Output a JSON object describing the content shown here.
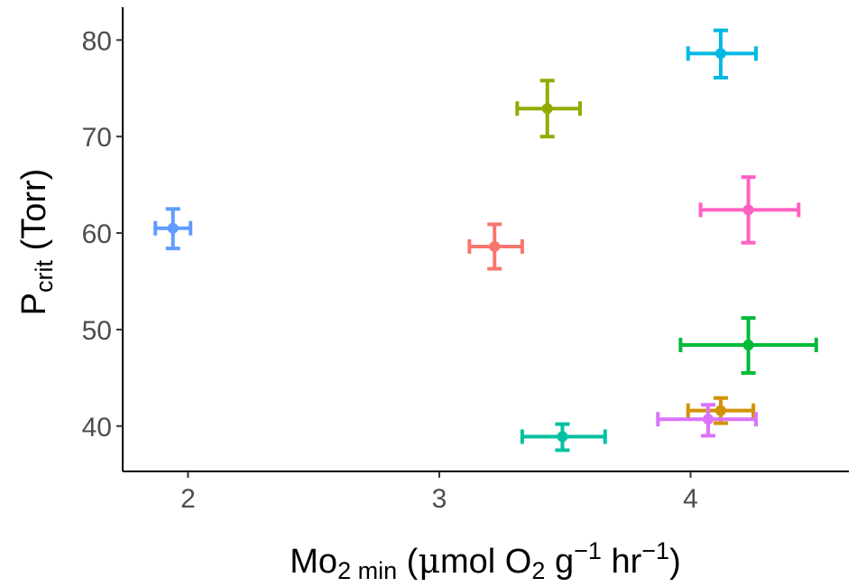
{
  "chart_data": {
    "type": "scatter",
    "title": "",
    "xlabel": {
      "base": "Mo",
      "sub": "2 min",
      "rest_open": " (",
      "mu": "μ",
      "mol": "mol O",
      "o_sub": "2",
      "g": " g",
      "g_sup": "−1",
      "hr": " hr",
      "hr_sup": "−1",
      "close": ")"
    },
    "ylabel": {
      "base": "P",
      "sub": "crit",
      "rest": " (Torr)"
    },
    "xlim": [
      1.74,
      4.63
    ],
    "ylim": [
      35.3,
      83.4
    ],
    "xticks": [
      {
        "value": 2,
        "label": "2"
      },
      {
        "value": 3,
        "label": "3"
      },
      {
        "value": 4,
        "label": "4"
      }
    ],
    "yticks": [
      {
        "value": 40,
        "label": "40"
      },
      {
        "value": 50,
        "label": "50"
      },
      {
        "value": 60,
        "label": "60"
      },
      {
        "value": 70,
        "label": "70"
      },
      {
        "value": 80,
        "label": "80"
      }
    ],
    "grid": false,
    "legend": "none",
    "points": [
      {
        "x": 1.94,
        "y": 60.5,
        "xerr": [
          1.87,
          2.01
        ],
        "yerr": [
          58.4,
          62.5
        ],
        "color": "#619CFF"
      },
      {
        "x": 3.22,
        "y": 58.6,
        "xerr": [
          3.12,
          3.33
        ],
        "yerr": [
          56.3,
          60.9
        ],
        "color": "#F8766D"
      },
      {
        "x": 3.43,
        "y": 72.9,
        "xerr": [
          3.31,
          3.56
        ],
        "yerr": [
          70.0,
          75.8
        ],
        "color": "#93AA00"
      },
      {
        "x": 3.49,
        "y": 38.9,
        "xerr": [
          3.33,
          3.66
        ],
        "yerr": [
          37.5,
          40.2
        ],
        "color": "#00C19F"
      },
      {
        "x": 4.12,
        "y": 78.6,
        "xerr": [
          3.99,
          4.26
        ],
        "yerr": [
          76.1,
          81.0
        ],
        "color": "#00B9E3"
      },
      {
        "x": 4.23,
        "y": 62.4,
        "xerr": [
          4.04,
          4.43
        ],
        "yerr": [
          59.0,
          65.8
        ],
        "color": "#FF61C3"
      },
      {
        "x": 4.23,
        "y": 48.4,
        "xerr": [
          3.96,
          4.5
        ],
        "yerr": [
          45.5,
          51.2
        ],
        "color": "#00BA38"
      },
      {
        "x": 4.12,
        "y": 41.6,
        "xerr": [
          3.99,
          4.25
        ],
        "yerr": [
          40.3,
          42.9
        ],
        "color": "#D39200"
      },
      {
        "x": 4.07,
        "y": 40.7,
        "xerr": [
          3.87,
          4.26
        ],
        "yerr": [
          39.0,
          42.2
        ],
        "color": "#DB72FB"
      }
    ]
  }
}
